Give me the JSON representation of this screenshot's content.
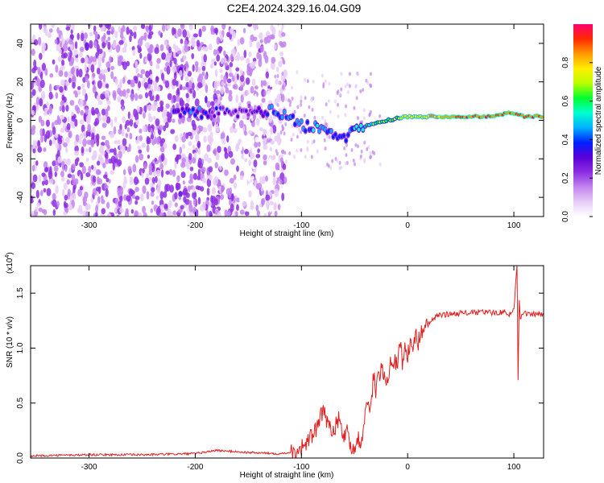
{
  "page_title": "C2E4.2024.329.16.04.G09",
  "chart_data": [
    {
      "type": "heatmap",
      "xlabel": "Height of straight line (km)",
      "ylabel": "Frequency (Hz)",
      "xlim": [
        -355,
        128
      ],
      "ylim": [
        -50,
        50
      ],
      "xticks": [
        -300,
        -200,
        -100,
        0,
        100
      ],
      "xtick_labels": [
        "-300",
        "-200",
        "-100",
        "0",
        "100"
      ],
      "yticks": [
        -40,
        -20,
        0,
        20,
        40
      ],
      "ytick_labels": [
        "-40",
        "-20",
        "0",
        "20",
        "40"
      ],
      "colorbar": {
        "label": "Normalized spectral amplitude",
        "range": [
          0,
          1
        ],
        "ticks": [
          0.0,
          0.2,
          0.4,
          0.6,
          0.8
        ],
        "tick_labels": [
          "0.0",
          "0.2",
          "0.4",
          "0.6",
          "0.8"
        ],
        "colors": [
          "#ffffff",
          "#e7ccf7",
          "#c283ee",
          "#8d2ee2",
          "#5b00d8",
          "#0020ff",
          "#00b0ff",
          "#00ffd0",
          "#00ff30",
          "#b8ff00",
          "#ffee00",
          "#ff9900",
          "#ff2a00",
          "#ff0070"
        ]
      },
      "ridge": [
        {
          "x": -220,
          "freq": 3,
          "amp": 0.35
        },
        {
          "x": -200,
          "freq": 4,
          "amp": 0.4
        },
        {
          "x": -180,
          "freq": 4,
          "amp": 0.3
        },
        {
          "x": -150,
          "freq": 4,
          "amp": 0.25
        },
        {
          "x": -130,
          "freq": 5,
          "amp": 0.4
        },
        {
          "x": -110,
          "freq": 2,
          "amp": 0.45
        },
        {
          "x": -100,
          "freq": -3,
          "amp": 0.4
        },
        {
          "x": -85,
          "freq": -4,
          "amp": 0.45
        },
        {
          "x": -70,
          "freq": -7,
          "amp": 0.4
        },
        {
          "x": -60,
          "freq": -9,
          "amp": 0.35
        },
        {
          "x": -50,
          "freq": -5,
          "amp": 0.5
        },
        {
          "x": -40,
          "freq": -3,
          "amp": 0.55
        },
        {
          "x": -30,
          "freq": -1,
          "amp": 0.6
        },
        {
          "x": -20,
          "freq": 0,
          "amp": 0.65
        },
        {
          "x": -10,
          "freq": 1,
          "amp": 0.7
        },
        {
          "x": 0,
          "freq": 2,
          "amp": 0.72
        },
        {
          "x": 20,
          "freq": 2,
          "amp": 0.8
        },
        {
          "x": 50,
          "freq": 2,
          "amp": 0.9
        },
        {
          "x": 80,
          "freq": 2,
          "amp": 0.9
        },
        {
          "x": 95,
          "freq": 4,
          "amp": 0.85
        },
        {
          "x": 110,
          "freq": 2,
          "amp": 0.9
        },
        {
          "x": 128,
          "freq": 2,
          "amp": 0.9
        }
      ],
      "noise_region_x": [
        -355,
        -125
      ]
    },
    {
      "type": "line",
      "xlabel": "Height of straight line (km)",
      "ylabel": "SNR (10 * v/v)",
      "y_multiplier_label": "(x10",
      "y_multiplier_exp": "4",
      "y_multiplier_close": ")",
      "xlim": [
        -355,
        128
      ],
      "ylim": [
        0,
        1.75
      ],
      "xticks": [
        -300,
        -200,
        -100,
        0,
        100
      ],
      "xtick_labels": [
        "-300",
        "-200",
        "-100",
        "0",
        "100"
      ],
      "yticks": [
        0.0,
        0.5,
        1.0,
        1.5
      ],
      "ytick_labels": [
        "0.0",
        "0.5",
        "1.0",
        "1.5"
      ],
      "series": [
        {
          "color": "#e02020",
          "x": [
            -355,
            -300,
            -250,
            -200,
            -180,
            -150,
            -120,
            -105,
            -100,
            -95,
            -90,
            -85,
            -80,
            -75,
            -70,
            -65,
            -60,
            -57,
            -55,
            -52,
            -50,
            -47,
            -45,
            -42,
            -40,
            -37,
            -35,
            -32,
            -30,
            -25,
            -20,
            -15,
            -10,
            -7,
            -5,
            -2,
            0,
            3,
            5,
            8,
            10,
            13,
            15,
            18,
            20,
            22,
            25,
            30,
            40,
            50,
            60,
            70,
            80,
            90,
            95,
            100,
            103,
            104,
            105,
            106,
            108,
            110,
            115,
            120,
            128
          ],
          "y": [
            0.02,
            0.03,
            0.03,
            0.04,
            0.07,
            0.05,
            0.04,
            0.06,
            0.1,
            0.14,
            0.2,
            0.28,
            0.42,
            0.33,
            0.25,
            0.35,
            0.18,
            0.32,
            0.15,
            0.08,
            0.05,
            0.2,
            0.1,
            0.25,
            0.38,
            0.55,
            0.45,
            0.75,
            0.62,
            0.82,
            0.7,
            0.92,
            0.85,
            1.05,
            0.88,
            1.02,
            0.92,
            1.08,
            0.98,
            1.12,
            1.05,
            1.18,
            1.15,
            1.2,
            1.22,
            1.25,
            1.27,
            1.3,
            1.31,
            1.32,
            1.32,
            1.33,
            1.32,
            1.33,
            1.3,
            1.35,
            1.75,
            0.72,
            1.45,
            1.28,
            1.31,
            1.32,
            1.3,
            1.31,
            1.3
          ]
        }
      ]
    }
  ]
}
